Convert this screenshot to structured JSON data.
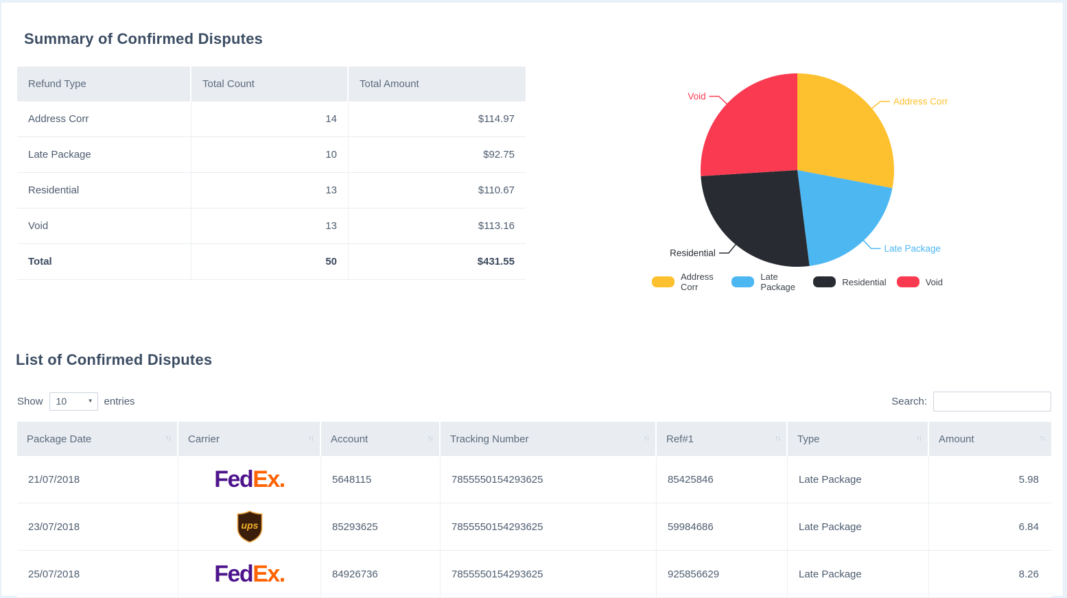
{
  "page": {
    "summary_title": "Summary of Confirmed Disputes",
    "list_title": "List of Confirmed Disputes"
  },
  "summary_table": {
    "columns": [
      "Refund Type",
      "Total Count",
      "Total Amount"
    ],
    "rows": [
      {
        "type": "Address Corr",
        "count": "14",
        "amount": "$114.97"
      },
      {
        "type": "Late Package",
        "count": "10",
        "amount": "$92.75"
      },
      {
        "type": "Residential",
        "count": "13",
        "amount": "$110.67"
      },
      {
        "type": "Void",
        "count": "13",
        "amount": "$113.16"
      }
    ],
    "total_row": {
      "type": "Total",
      "count": "50",
      "amount": "$431.55"
    }
  },
  "chart_data": {
    "type": "pie",
    "categories": [
      "Address Corr",
      "Late Package",
      "Residential",
      "Void"
    ],
    "values": [
      14,
      10,
      13,
      13
    ],
    "percentages": [
      28,
      20,
      26,
      26
    ],
    "colors": [
      "#fdc02f",
      "#4db7f2",
      "#282b32",
      "#f93a51"
    ],
    "legend_position": "bottom",
    "labels_outside": true,
    "start_angle": "12-oclock-clockwise"
  },
  "list_controls": {
    "show_label": "Show",
    "page_size": "10",
    "entries_label": "entries",
    "search_label": "Search:",
    "search_value": ""
  },
  "list_table": {
    "columns": [
      "Package Date",
      "Carrier",
      "Account",
      "Tracking Number",
      "Ref#1",
      "Type",
      "Amount"
    ],
    "rows": [
      {
        "date": "21/07/2018",
        "carrier": "fedex",
        "account": "5648115",
        "tracking": "7855550154293625",
        "ref1": "85425846",
        "type": "Late Package",
        "amount": "5.98"
      },
      {
        "date": "23/07/2018",
        "carrier": "ups",
        "account": "85293625",
        "tracking": "7855550154293625",
        "ref1": "59984686",
        "type": "Late Package",
        "amount": "6.84"
      },
      {
        "date": "25/07/2018",
        "carrier": "fedex",
        "account": "84926736",
        "tracking": "7855550154293625",
        "ref1": "925856629",
        "type": "Late Package",
        "amount": "8.26"
      }
    ]
  },
  "carrier_logos": {
    "fedex": {
      "part1": "Fed",
      "part2": "Ex",
      "dot": ".",
      "purple": "#4d148c",
      "orange": "#ff6200"
    },
    "ups": {
      "text": "ups",
      "shield": "#3a1d0b",
      "gold": "#f4b229"
    }
  },
  "icons": {
    "sort_icon": "↑↓",
    "caret_down_icon": "▼"
  }
}
